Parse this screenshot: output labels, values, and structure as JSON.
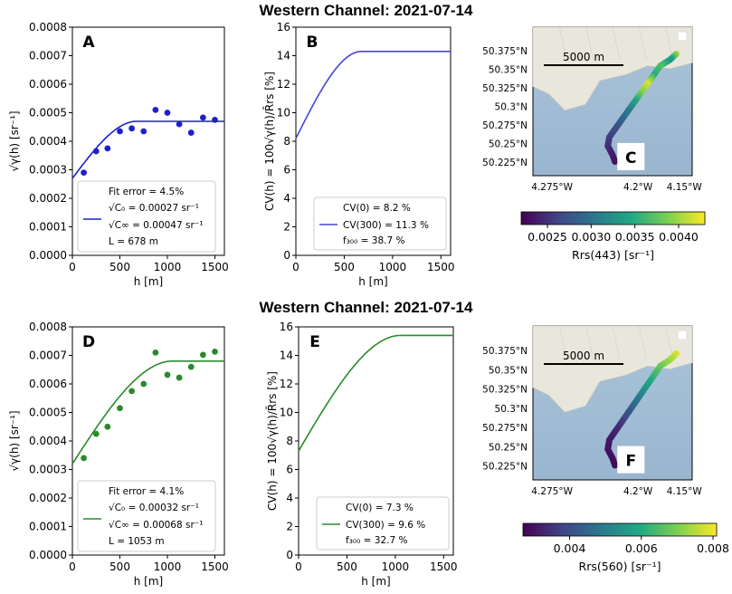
{
  "rows": [
    {
      "title": "Western Channel: 2021-07-14"
    },
    {
      "title": "Western Channel: 2021-07-14"
    }
  ],
  "chart_data": [
    {
      "panel": "A",
      "type": "scatter",
      "xlabel": "h [m]",
      "ylabel": "√γ(h)  [sr⁻¹]",
      "xlim": [
        0,
        1600
      ],
      "ylim": [
        0,
        0.0008
      ],
      "xticks": [
        0,
        500,
        1000,
        1500
      ],
      "yticks": [
        0.0,
        0.0001,
        0.0002,
        0.0003,
        0.0004,
        0.0005,
        0.0006,
        0.0007,
        0.0008
      ],
      "ytick_labels": [
        "0.0000",
        "0.0001",
        "0.0002",
        "0.0003",
        "0.0004",
        "0.0005",
        "0.0006",
        "0.0007",
        "0.0008"
      ],
      "color": "#1f1fcc",
      "points": {
        "x": [
          120,
          250,
          370,
          500,
          625,
          750,
          875,
          1000,
          1125,
          1250,
          1375,
          1500
        ],
        "y": [
          0.00029,
          0.000365,
          0.000375,
          0.000435,
          0.000445,
          0.000435,
          0.00051,
          0.0005,
          0.00046,
          0.00043,
          0.000483,
          0.000475
        ]
      },
      "fit": {
        "c0": 0.00027,
        "cinf": 0.00047,
        "L": 678
      },
      "legend": [
        "Fit error = 4.5%",
        "√C₀ = 0.00027 sr⁻¹",
        "√C∞ = 0.00047 sr⁻¹",
        "L = 678 m"
      ]
    },
    {
      "panel": "B",
      "type": "line",
      "xlabel": "h [m]",
      "ylabel": "CV(h) = 100√γ(h)/R̄rs  [%]",
      "xlim": [
        0,
        1600
      ],
      "ylim": [
        0,
        16
      ],
      "xticks": [
        0,
        500,
        1000,
        1500
      ],
      "yticks": [
        0,
        2,
        4,
        6,
        8,
        10,
        12,
        14,
        16
      ],
      "color": "#4646d6",
      "curve": {
        "cv0": 8.2,
        "cvinf": 14.3,
        "L": 678
      },
      "legend": [
        "CV(0) = 8.2 %",
        "CV(300) = 11.3 %",
        "f₃₀₀ = 38.7 %"
      ]
    },
    {
      "panel": "D",
      "type": "scatter",
      "xlabel": "h [m]",
      "ylabel": "√γ(h)  [sr⁻¹]",
      "xlim": [
        0,
        1600
      ],
      "ylim": [
        0,
        0.0008
      ],
      "xticks": [
        0,
        500,
        1000,
        1500
      ],
      "yticks": [
        0.0,
        0.0001,
        0.0002,
        0.0003,
        0.0004,
        0.0005,
        0.0006,
        0.0007,
        0.0008
      ],
      "ytick_labels": [
        "0.0000",
        "0.0001",
        "0.0002",
        "0.0003",
        "0.0004",
        "0.0005",
        "0.0006",
        "0.0007",
        "0.0008"
      ],
      "color": "#2a8a2a",
      "points": {
        "x": [
          120,
          250,
          370,
          500,
          625,
          750,
          875,
          1000,
          1125,
          1250,
          1375,
          1500
        ],
        "y": [
          0.00034,
          0.000425,
          0.00045,
          0.000515,
          0.000575,
          0.0006,
          0.00071,
          0.000632,
          0.000622,
          0.00066,
          0.000702,
          0.000713
        ]
      },
      "fit": {
        "c0": 0.00032,
        "cinf": 0.00068,
        "L": 1053
      },
      "legend": [
        "Fit error = 4.1%",
        "√C₀ = 0.00032 sr⁻¹",
        "√C∞ = 0.00068 sr⁻¹",
        "L = 1053 m"
      ]
    },
    {
      "panel": "E",
      "type": "line",
      "xlabel": "h [m]",
      "ylabel": "CV(h) = 100√γ(h)/R̄rs  [%]",
      "xlim": [
        0,
        1600
      ],
      "ylim": [
        0,
        16
      ],
      "xticks": [
        0,
        500,
        1000,
        1500
      ],
      "yticks": [
        0,
        2,
        4,
        6,
        8,
        10,
        12,
        14,
        16
      ],
      "color": "#2a8a2a",
      "curve": {
        "cv0": 7.3,
        "cvinf": 15.4,
        "L": 1053
      },
      "legend": [
        "CV(0) = 7.3 %",
        "CV(300) = 9.6 %",
        "f₃₀₀ = 32.7 %"
      ]
    },
    {
      "panel": "C",
      "type": "map",
      "scale_label": "5000 m",
      "lat_labels": [
        "50.375°N",
        "50.35°N",
        "50.325°N",
        "50.3°N",
        "50.275°N",
        "50.25°N",
        "50.225°N"
      ],
      "lon_labels": [
        "4.275°W",
        "4.2°W",
        "4.15°W"
      ],
      "colorbar": {
        "ticks": [
          "0.0025",
          "0.0030",
          "0.0035",
          "0.0040"
        ],
        "tick_values": [
          0.0025,
          0.003,
          0.0035,
          0.004
        ],
        "range": [
          0.0022,
          0.0043
        ],
        "label": "Rrs(443) [sr⁻¹]"
      }
    },
    {
      "panel": "F",
      "type": "map",
      "scale_label": "5000 m",
      "lat_labels": [
        "50.375°N",
        "50.35°N",
        "50.325°N",
        "50.3°N",
        "50.275°N",
        "50.25°N",
        "50.225°N"
      ],
      "lon_labels": [
        "4.275°W",
        "4.2°W",
        "4.15°W"
      ],
      "colorbar": {
        "ticks": [
          "0.004",
          "0.006",
          "0.008"
        ],
        "tick_values": [
          0.004,
          0.006,
          0.008
        ],
        "range": [
          0.0027,
          0.0081
        ],
        "label": "Rrs(560) [sr⁻¹]"
      }
    }
  ]
}
